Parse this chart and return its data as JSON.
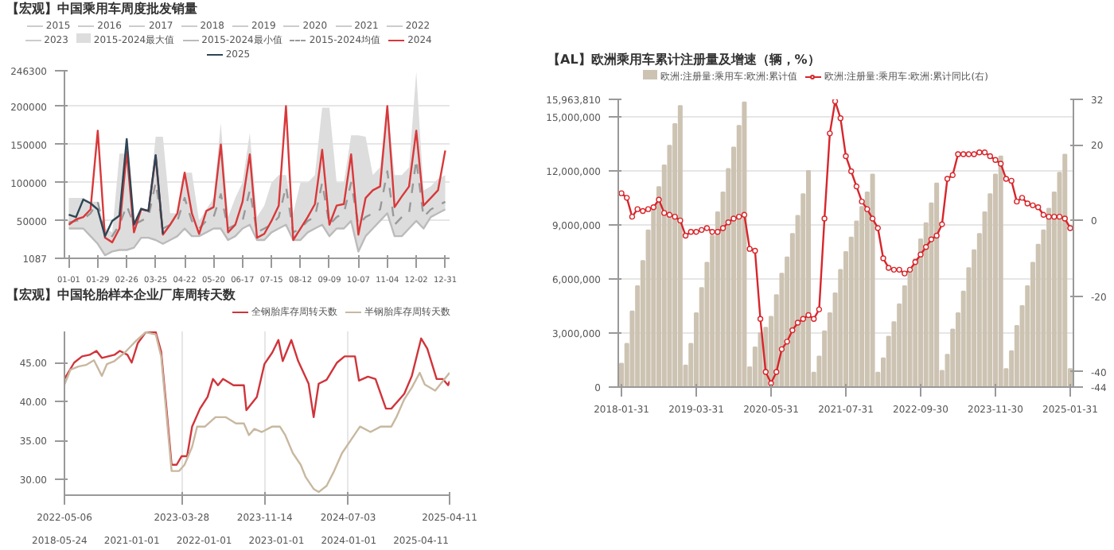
{
  "chart_data": [
    {
      "type": "line",
      "title": "【宏观】中国乘用车周度批发销量",
      "legend": "top",
      "grid": "y",
      "categories": [
        "01-01",
        null,
        null,
        null,
        "01-29",
        null,
        null,
        null,
        "02-26",
        null,
        null,
        null,
        "03-25",
        null,
        null,
        null,
        "04-22",
        null,
        null,
        null,
        "05-20",
        null,
        null,
        null,
        "06-17",
        null,
        null,
        null,
        "07-15",
        null,
        null,
        null,
        "08-12",
        null,
        null,
        null,
        "09-09",
        null,
        null,
        null,
        "10-07",
        null,
        null,
        null,
        "11-04",
        null,
        null,
        null,
        "12-02",
        null,
        null,
        null,
        "12-31"
      ],
      "ylim": [
        1087,
        246300
      ],
      "yticks": [
        1087,
        50000,
        100000,
        150000,
        200000,
        246300
      ],
      "series": [
        {
          "name": "2015",
          "color": "#cccccc",
          "values": [
            null,
            null,
            null,
            null,
            null,
            null,
            null,
            null,
            null,
            null,
            null,
            null,
            null,
            null,
            null,
            null,
            null,
            null,
            null,
            null,
            null,
            null,
            null,
            null,
            null,
            null,
            null,
            null,
            null,
            null,
            null,
            null,
            null,
            null,
            null,
            null,
            null,
            null,
            null,
            null,
            null,
            null,
            null,
            null,
            null,
            null,
            null,
            null,
            null,
            null,
            null,
            null,
            null
          ]
        },
        {
          "name": "2016",
          "color": "#cccccc",
          "values": [
            null,
            null,
            null,
            null,
            null,
            null,
            null,
            null,
            null,
            null,
            null,
            null,
            null,
            null,
            null,
            null,
            null,
            null,
            null,
            null,
            null,
            null,
            null,
            null,
            null,
            null,
            null,
            null,
            null,
            null,
            null,
            null,
            null,
            null,
            null,
            null,
            null,
            null,
            null,
            null,
            null,
            null,
            null,
            null,
            null,
            null,
            null,
            null,
            null,
            null,
            null,
            null,
            null
          ]
        },
        {
          "name": "2017",
          "color": "#cccccc",
          "values": [
            null,
            null,
            null,
            null,
            null,
            null,
            null,
            null,
            null,
            null,
            null,
            null,
            null,
            null,
            null,
            null,
            null,
            null,
            null,
            null,
            null,
            null,
            null,
            null,
            null,
            null,
            null,
            null,
            null,
            null,
            null,
            null,
            null,
            null,
            null,
            null,
            null,
            null,
            null,
            null,
            null,
            null,
            null,
            null,
            null,
            null,
            null,
            null,
            null,
            null,
            null,
            null,
            null
          ]
        },
        {
          "name": "2018",
          "color": "#cccccc",
          "values": [
            null,
            null,
            null,
            null,
            null,
            null,
            null,
            null,
            null,
            null,
            null,
            null,
            null,
            null,
            null,
            null,
            null,
            null,
            null,
            null,
            null,
            null,
            null,
            null,
            null,
            null,
            null,
            null,
            null,
            null,
            null,
            null,
            null,
            null,
            null,
            null,
            null,
            null,
            null,
            null,
            null,
            null,
            null,
            null,
            null,
            null,
            null,
            null,
            null,
            null,
            null,
            null,
            null
          ]
        },
        {
          "name": "2019",
          "color": "#cccccc",
          "values": [
            null,
            null,
            null,
            null,
            null,
            null,
            null,
            null,
            null,
            null,
            null,
            null,
            null,
            null,
            null,
            null,
            null,
            null,
            null,
            null,
            null,
            null,
            null,
            null,
            null,
            null,
            null,
            null,
            null,
            null,
            null,
            null,
            null,
            null,
            null,
            null,
            null,
            null,
            null,
            null,
            null,
            null,
            null,
            null,
            null,
            null,
            null,
            null,
            null,
            null,
            null,
            null,
            null
          ]
        },
        {
          "name": "2020",
          "color": "#cccccc",
          "values": [
            null,
            null,
            null,
            null,
            null,
            null,
            null,
            null,
            null,
            null,
            null,
            null,
            null,
            null,
            null,
            null,
            null,
            null,
            null,
            null,
            null,
            null,
            null,
            null,
            null,
            null,
            null,
            null,
            null,
            null,
            null,
            null,
            null,
            null,
            null,
            null,
            null,
            null,
            null,
            null,
            null,
            null,
            null,
            null,
            null,
            null,
            null,
            null,
            null,
            null,
            null,
            null,
            null
          ]
        },
        {
          "name": "2021",
          "color": "#cccccc",
          "values": [
            null,
            null,
            null,
            null,
            null,
            null,
            null,
            null,
            null,
            null,
            null,
            null,
            null,
            null,
            null,
            null,
            null,
            null,
            null,
            null,
            null,
            null,
            null,
            null,
            null,
            null,
            null,
            null,
            null,
            null,
            null,
            null,
            null,
            null,
            null,
            null,
            null,
            null,
            null,
            null,
            null,
            null,
            null,
            null,
            null,
            null,
            null,
            null,
            null,
            null,
            null,
            null,
            null
          ]
        },
        {
          "name": "2022",
          "color": "#cccccc",
          "values": [
            null,
            null,
            null,
            null,
            null,
            null,
            null,
            null,
            null,
            null,
            null,
            null,
            null,
            null,
            null,
            null,
            null,
            null,
            null,
            null,
            null,
            null,
            null,
            null,
            null,
            null,
            null,
            null,
            null,
            null,
            null,
            null,
            null,
            null,
            null,
            null,
            null,
            null,
            null,
            null,
            null,
            null,
            null,
            null,
            null,
            null,
            null,
            null,
            null,
            null,
            null,
            null,
            null
          ]
        },
        {
          "name": "2023",
          "color": "#cccccc",
          "values": [
            null,
            null,
            null,
            null,
            null,
            null,
            null,
            null,
            null,
            null,
            null,
            null,
            null,
            null,
            null,
            null,
            null,
            null,
            null,
            null,
            null,
            null,
            null,
            null,
            null,
            null,
            null,
            null,
            null,
            null,
            null,
            null,
            null,
            null,
            null,
            null,
            null,
            null,
            null,
            null,
            null,
            null,
            null,
            null,
            null,
            null,
            null,
            null,
            null,
            null,
            null,
            null,
            null
          ]
        },
        {
          "name": "2015-2024最大值",
          "type": "area",
          "color": "#dddddd",
          "values": [
            80000,
            80000,
            80000,
            75000,
            75000,
            40000,
            35000,
            138000,
            138000,
            50000,
            62000,
            65000,
            160000,
            160000,
            60000,
            60000,
            113000,
            113000,
            50000,
            65000,
            80000,
            178000,
            55000,
            80000,
            100000,
            165000,
            55000,
            70000,
            100000,
            110000,
            110000,
            60000,
            100000,
            100000,
            110000,
            198000,
            198000,
            100000,
            100000,
            162000,
            162000,
            160000,
            110000,
            120000,
            200000,
            110000,
            110000,
            120000,
            245000,
            90000,
            95000,
            105000,
            110000
          ]
        },
        {
          "name": "2015-2024最小值",
          "color": "#bbbbbb",
          "values": [
            40000,
            40000,
            40000,
            30000,
            20000,
            5000,
            10000,
            12000,
            12000,
            15000,
            28000,
            28000,
            25000,
            20000,
            25000,
            30000,
            40000,
            30000,
            30000,
            35000,
            40000,
            40000,
            25000,
            30000,
            40000,
            45000,
            25000,
            25000,
            35000,
            40000,
            45000,
            25000,
            25000,
            35000,
            40000,
            45000,
            30000,
            40000,
            40000,
            50000,
            10000,
            30000,
            40000,
            50000,
            60000,
            30000,
            30000,
            40000,
            50000,
            40000,
            55000,
            60000,
            65000
          ]
        },
        {
          "name": "2015-2024均值",
          "color": "#999999",
          "line_style": "dashed",
          "values": [
            48000,
            50000,
            52000,
            60000,
            75000,
            35000,
            30000,
            45000,
            70000,
            45000,
            50000,
            55000,
            100000,
            40000,
            45000,
            50000,
            80000,
            50000,
            40000,
            50000,
            55000,
            85000,
            40000,
            45000,
            50000,
            90000,
            35000,
            40000,
            45000,
            55000,
            95000,
            35000,
            40000,
            50000,
            55000,
            100000,
            45000,
            55000,
            60000,
            100000,
            45000,
            55000,
            60000,
            65000,
            115000,
            45000,
            55000,
            60000,
            130000,
            55000,
            65000,
            70000,
            75000
          ]
        },
        {
          "name": "2024",
          "color": "#d9383a",
          "values": [
            45000,
            52000,
            55000,
            65000,
            168000,
            28000,
            22000,
            40000,
            140000,
            35000,
            65000,
            63000,
            135000,
            32000,
            45000,
            60000,
            113000,
            60000,
            33000,
            63000,
            68000,
            150000,
            35000,
            45000,
            75000,
            137000,
            28000,
            33000,
            50000,
            70000,
            200000,
            25000,
            40000,
            55000,
            72000,
            143000,
            45000,
            70000,
            72000,
            137000,
            32000,
            80000,
            90000,
            95000,
            200000,
            68000,
            82000,
            95000,
            168000,
            70000,
            80000,
            90000,
            142000
          ]
        },
        {
          "name": "2025",
          "color": "#2f4554",
          "values": [
            58000,
            55000,
            78000,
            73000,
            65000,
            30000,
            50000,
            57000,
            157000,
            45000,
            66000,
            63000,
            136000,
            33000,
            null,
            null,
            null,
            null,
            null,
            null,
            null,
            null,
            null,
            null,
            null,
            null,
            null,
            null,
            null,
            null,
            null,
            null,
            null,
            null,
            null,
            null,
            null,
            null,
            null,
            null,
            null,
            null,
            null,
            null,
            null,
            null,
            null,
            null,
            null,
            null,
            null,
            null,
            null
          ]
        }
      ]
    },
    {
      "type": "line",
      "title": "【宏观】中国轮胎样本企业厂库周转天数",
      "legend": "top right",
      "grid": "x",
      "xlim": [
        "2022-05-06",
        "2025-04-11"
      ],
      "xticks": [
        "2022-05-06",
        "2023-03-28",
        "2023-11-14",
        "2024-07-03",
        "2025-04-11"
      ],
      "ylim": [
        28,
        49
      ],
      "yticks": [
        {
          "value": 30,
          "label": "30.00"
        },
        {
          "value": 35,
          "label": "35.00"
        },
        {
          "value": 40,
          "label": "40.00"
        },
        {
          "value": 45,
          "label": "45.00"
        }
      ],
      "annotations": [
        "2018-05-24",
        "2021-01-01",
        "2022-01-01",
        "2023-01-01",
        "2024-01-01",
        "2025-04-11"
      ],
      "series": [
        {
          "name": "全钢胎库存周转天数",
          "color": "#d0343a",
          "x": [
            "2022-05-06",
            "2022-06-02",
            "2022-06-24",
            "2022-07-15",
            "2022-08-03",
            "2022-08-18",
            "2022-09-22",
            "2022-10-07",
            "2022-10-28",
            "2022-11-09",
            "2022-11-26",
            "2022-12-18",
            "2023-01-15",
            "2023-01-30",
            "2023-02-13",
            "2023-02-28",
            "2023-03-14",
            "2023-03-28",
            "2023-04-12",
            "2023-04-26",
            "2023-05-18",
            "2023-06-08",
            "2023-06-23",
            "2023-07-07",
            "2023-07-21",
            "2023-08-19",
            "2023-09-17",
            "2023-09-24",
            "2023-10-23",
            "2023-11-13",
            "2023-12-05",
            "2023-12-22",
            "2024-01-03",
            "2024-01-27",
            "2024-02-15",
            "2024-03-15",
            "2024-03-29",
            "2024-04-12",
            "2024-05-04",
            "2024-06-02",
            "2024-06-23",
            "2024-07-22",
            "2024-08-02",
            "2024-08-27",
            "2024-09-17",
            "2024-10-16",
            "2024-10-31",
            "2024-12-06",
            "2024-12-27",
            "2025-01-22",
            "2025-02-08",
            "2025-03-06",
            "2025-03-23",
            "2025-04-07",
            "2025-04-11"
          ],
          "values": [
            42.9,
            45.0,
            45.8,
            46.0,
            46.5,
            45.6,
            46.0,
            46.5,
            46.0,
            45.0,
            47.5,
            48.9,
            48.9,
            46.4,
            39.5,
            31.9,
            31.9,
            33.0,
            33.0,
            36.8,
            39.1,
            40.6,
            42.9,
            42.1,
            42.9,
            42.1,
            42.1,
            38.9,
            40.6,
            44.8,
            46.3,
            47.9,
            45.2,
            47.9,
            45.2,
            42.3,
            38.0,
            42.3,
            42.8,
            45.0,
            45.8,
            45.8,
            42.7,
            43.2,
            42.9,
            39.1,
            39.1,
            41.0,
            43.3,
            48.1,
            46.8,
            42.9,
            42.9,
            42.1,
            42.6
          ]
        },
        {
          "name": "半钢胎库存周转天数",
          "color": "#c8b8a0",
          "x": [
            "2022-05-06",
            "2022-05-23",
            "2022-06-14",
            "2022-07-05",
            "2022-07-27",
            "2022-08-18",
            "2022-09-01",
            "2022-09-22",
            "2022-10-21",
            "2022-11-19",
            "2022-12-18",
            "2023-01-15",
            "2023-01-30",
            "2023-02-13",
            "2023-02-28",
            "2023-03-21",
            "2023-04-05",
            "2023-04-26",
            "2023-05-10",
            "2023-06-01",
            "2023-06-30",
            "2023-07-29",
            "2023-08-26",
            "2023-09-17",
            "2023-10-01",
            "2023-10-16",
            "2023-11-06",
            "2023-12-05",
            "2023-12-26",
            "2024-01-10",
            "2024-01-31",
            "2024-02-22",
            "2024-03-07",
            "2024-03-29",
            "2024-04-12",
            "2024-05-04",
            "2024-05-25",
            "2024-06-16",
            "2024-07-08",
            "2024-08-05",
            "2024-09-03",
            "2024-10-02",
            "2024-10-31",
            "2024-11-14",
            "2024-12-06",
            "2024-12-27",
            "2025-01-18",
            "2025-02-01",
            "2025-03-02",
            "2025-03-23",
            "2025-04-11"
          ],
          "values": [
            42.2,
            44.1,
            44.5,
            44.7,
            45.3,
            43.3,
            44.8,
            45.2,
            46.3,
            47.7,
            48.9,
            48.6,
            45.8,
            38.7,
            31.1,
            31.1,
            31.9,
            34.2,
            36.8,
            36.8,
            38.0,
            38.0,
            37.2,
            37.2,
            35.7,
            36.5,
            36.1,
            36.8,
            36.8,
            35.7,
            33.4,
            31.9,
            30.3,
            28.8,
            28.4,
            29.2,
            31.1,
            33.4,
            34.9,
            36.8,
            36.1,
            36.8,
            36.8,
            38.0,
            40.3,
            41.8,
            43.7,
            42.2,
            41.4,
            42.6,
            43.7
          ]
        }
      ]
    },
    {
      "type": "bar",
      "title": "【AL】欧洲乘用车累计注册量及增速（辆，%）",
      "legend": "top",
      "grid": "y",
      "marker": "circle",
      "categories": [
        "2018-01-31",
        null,
        null,
        null,
        null,
        null,
        null,
        null,
        null,
        null,
        null,
        null,
        null,
        null,
        "2019-03-31",
        null,
        null,
        null,
        null,
        null,
        null,
        null,
        null,
        null,
        null,
        null,
        null,
        null,
        "2020-05-31",
        null,
        null,
        null,
        null,
        null,
        null,
        null,
        null,
        null,
        null,
        null,
        null,
        null,
        "2021-07-31",
        null,
        null,
        null,
        null,
        null,
        null,
        null,
        null,
        null,
        null,
        null,
        null,
        null,
        "2022-09-30",
        null,
        null,
        null,
        null,
        null,
        null,
        null,
        null,
        null,
        null,
        null,
        null,
        null,
        "2023-11-30",
        null,
        null,
        null,
        null,
        null,
        null,
        null,
        null,
        null,
        null,
        null,
        null,
        null,
        "2025-01-31"
      ],
      "ylim": [
        0,
        15963810
      ],
      "yticks": [
        0,
        {
          "value": 3000000,
          "label": "3,000,000"
        },
        {
          "value": 6000000,
          "label": "6,000,000"
        },
        {
          "value": 9000000,
          "label": "9,000,000"
        },
        {
          "value": 12000000,
          "label": "12,000,000"
        },
        {
          "value": 15000000,
          "label": "15,000,000"
        },
        {
          "value": 15963810,
          "label": "15,963,810"
        }
      ],
      "y2lim": [
        -44,
        32
      ],
      "y2ticks": [
        -44,
        -40,
        -20,
        0,
        20,
        32
      ],
      "series": [
        {
          "name": "欧洲:注册量:乘用车:欧洲:累计值",
          "type": "bar",
          "color": "#cdc3b3",
          "values": [
            1300000,
            2400000,
            4200000,
            5600000,
            7000000,
            8700000,
            9900000,
            11100000,
            12300000,
            13400000,
            14600000,
            15600000,
            1200000,
            2400000,
            4100000,
            5500000,
            6900000,
            8400000,
            9700000,
            10800000,
            12100000,
            13300000,
            14500000,
            15800000,
            1100000,
            2200000,
            3000000,
            3300000,
            3900000,
            5100000,
            6300000,
            7200000,
            8500000,
            9500000,
            10700000,
            12000000,
            800000,
            1700000,
            3100000,
            4100000,
            5200000,
            6500000,
            7500000,
            8300000,
            9200000,
            10000000,
            10800000,
            11800000,
            800000,
            1600000,
            2800000,
            3600000,
            4600000,
            5600000,
            6400000,
            7100000,
            8200000,
            9100000,
            10200000,
            11300000,
            900000,
            1800000,
            3200000,
            4100000,
            5300000,
            6600000,
            7600000,
            8500000,
            9700000,
            10700000,
            11800000,
            12800000,
            1000000,
            2000000,
            3400000,
            4500000,
            5600000,
            6900000,
            7900000,
            8700000,
            9900000,
            10800000,
            11900000,
            12900000,
            1000000
          ]
        },
        {
          "name": "欧洲:注册量:乘用车:欧洲:累计同比(右)",
          "type": "line",
          "axis": "y2",
          "color": "#d7262b",
          "values": [
            7.2,
            6,
            1,
            3,
            2.5,
            3,
            3.5,
            5.5,
            2,
            1.5,
            1,
            0,
            -4,
            -3,
            -3,
            -2.5,
            -2,
            -3,
            -3,
            -2,
            -0.5,
            0.5,
            1,
            1.5,
            -7.5,
            -8,
            -26,
            -40,
            -43,
            -40,
            -34,
            -32,
            -29,
            -27,
            -26,
            -25,
            -26,
            -23.5,
            0.5,
            23,
            31.5,
            27,
            17,
            13,
            9,
            5,
            3,
            0.5,
            -2,
            -10,
            -12.5,
            -13,
            -13,
            -14,
            -13,
            -11,
            -9,
            -7,
            -5,
            -4,
            -1,
            11,
            12,
            17.5,
            17.5,
            17.5,
            17.5,
            18,
            18,
            17,
            16,
            15,
            11,
            10.5,
            5,
            6,
            4.5,
            4,
            3.5,
            1.5,
            1,
            1,
            1,
            0.5,
            -2
          ]
        }
      ]
    }
  ]
}
